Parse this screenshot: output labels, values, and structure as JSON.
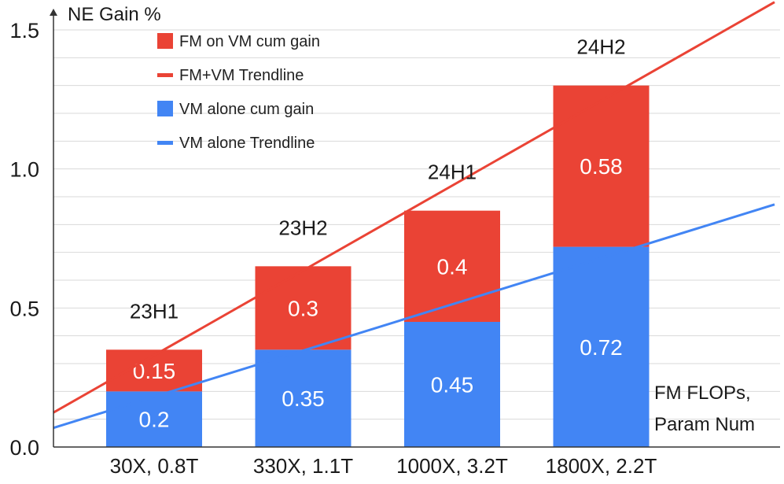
{
  "chart_data": {
    "type": "bar",
    "stacked": true,
    "title": "",
    "ylabel": "NE Gain %",
    "xlabel": [
      "FM FLOPs,",
      "Param Num"
    ],
    "ylim": [
      0,
      1.5
    ],
    "yticks": [
      "0.0",
      "0.5",
      "1.0",
      "1.5"
    ],
    "ytick_values": [
      0,
      0.5,
      1.0,
      1.5
    ],
    "grid": true,
    "legend_position": "top-left",
    "categories": [
      "30X, 0.8T",
      "330X, 1.1T",
      "1000X, 3.2T",
      "1800X, 2.2T"
    ],
    "period_labels": [
      "23H1",
      "23H2",
      "24H1",
      "24H2"
    ],
    "series": [
      {
        "name": "VM alone cum gain",
        "color": "#4285f4",
        "values": [
          0.2,
          0.35,
          0.45,
          0.72
        ],
        "labels": [
          "0.2",
          "0.35",
          "0.45",
          "0.72"
        ]
      },
      {
        "name": "FM on VM cum gain",
        "color": "#ea4335",
        "values": [
          0.15,
          0.3,
          0.4,
          0.58
        ],
        "labels": [
          "0.15",
          "0.3",
          "0.4",
          "0.58"
        ]
      }
    ],
    "trendlines": [
      {
        "name": "FM+VM Trendline",
        "color": "#ea4335"
      },
      {
        "name": "VM alone Trendline",
        "color": "#4285f4"
      }
    ],
    "legend": [
      {
        "label": "FM on VM cum gain",
        "kind": "box",
        "color": "#ea4335"
      },
      {
        "label": "FM+VM Trendline",
        "kind": "line",
        "color": "#ea4335"
      },
      {
        "label": "VM alone cum gain",
        "kind": "box",
        "color": "#4285f4"
      },
      {
        "label": "VM alone Trendline",
        "kind": "line",
        "color": "#4285f4"
      }
    ]
  }
}
